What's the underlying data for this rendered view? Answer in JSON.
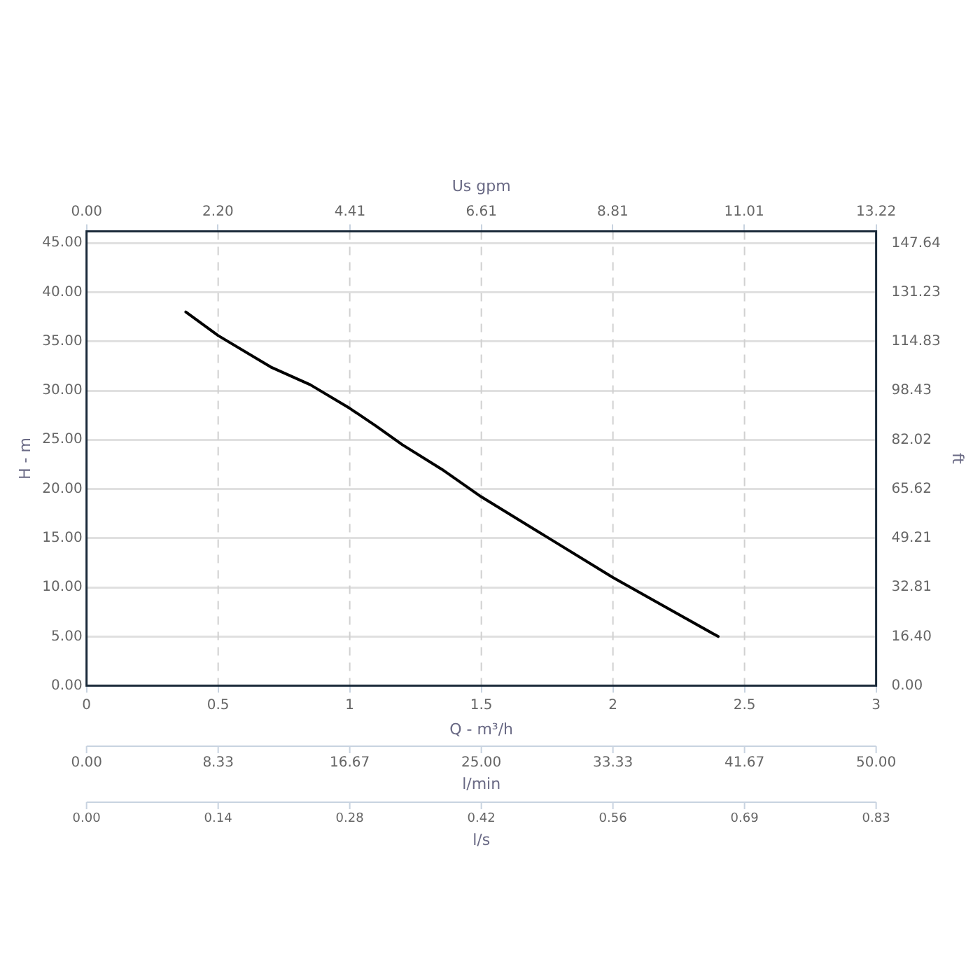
{
  "chart_data": {
    "type": "line",
    "xlabel": "Q - m³/h",
    "ylabel": "H - m",
    "y2label": "ft",
    "x2label": "Us gpm",
    "x": [
      0.377,
      0.5,
      0.7,
      0.85,
      1.0,
      1.1,
      1.2,
      1.35,
      1.5,
      1.75,
      2.0,
      2.2,
      2.4
    ],
    "series": [
      {
        "color": "#000000",
        "values": [
          38.0,
          35.6,
          32.4,
          30.6,
          28.2,
          26.4,
          24.5,
          22.0,
          19.2,
          15.1,
          11.0,
          8.0,
          5.0
        ]
      }
    ],
    "xlim": [
      0,
      3
    ],
    "xticks": [
      0,
      0.5,
      1,
      1.5,
      2,
      2.5,
      3
    ],
    "ylim": [
      0,
      46.2
    ],
    "yticks": [
      {
        "value": 0,
        "label": "0.00"
      },
      {
        "value": 5,
        "label": "5.00"
      },
      {
        "value": 10,
        "label": "10.00"
      },
      {
        "value": 15,
        "label": "15.00"
      },
      {
        "value": 20,
        "label": "20.00"
      },
      {
        "value": 25,
        "label": "25.00"
      },
      {
        "value": 30,
        "label": "30.00"
      },
      {
        "value": 35,
        "label": "35.00"
      },
      {
        "value": 40,
        "label": "40.00"
      },
      {
        "value": 45,
        "label": "45.00"
      }
    ],
    "y2lim": [
      0,
      151.6
    ],
    "y2ticks": [
      {
        "value": 0,
        "label": "0.00"
      },
      {
        "value": 16.4,
        "label": "16.40"
      },
      {
        "value": 32.81,
        "label": "32.81"
      },
      {
        "value": 49.21,
        "label": "49.21"
      },
      {
        "value": 65.62,
        "label": "65.62"
      },
      {
        "value": 82.02,
        "label": "82.02"
      },
      {
        "value": 98.43,
        "label": "98.43"
      },
      {
        "value": 114.83,
        "label": "114.83"
      },
      {
        "value": 131.23,
        "label": "131.23"
      },
      {
        "value": 147.64,
        "label": "147.64"
      }
    ],
    "x2lim": [
      0,
      13.22
    ],
    "x2ticks": [
      {
        "value": 0,
        "label": "0.00"
      },
      {
        "value": 2.2,
        "label": "2.20"
      },
      {
        "value": 4.41,
        "label": "4.41"
      },
      {
        "value": 6.61,
        "label": "6.61"
      },
      {
        "value": 8.81,
        "label": "8.81"
      },
      {
        "value": 11.01,
        "label": "11.01"
      },
      {
        "value": 13.22,
        "label": "13.22"
      }
    ],
    "annotations": [
      "0.00",
      "8.33",
      "16.67",
      "25.00",
      "33.33",
      "41.67",
      "50.00",
      "l/min",
      "0.00",
      "0.14",
      "0.28",
      "0.42",
      "0.56",
      "0.69",
      "0.83",
      "l/s"
    ],
    "grid": true,
    "marker": "none",
    "line_style": "solid"
  }
}
